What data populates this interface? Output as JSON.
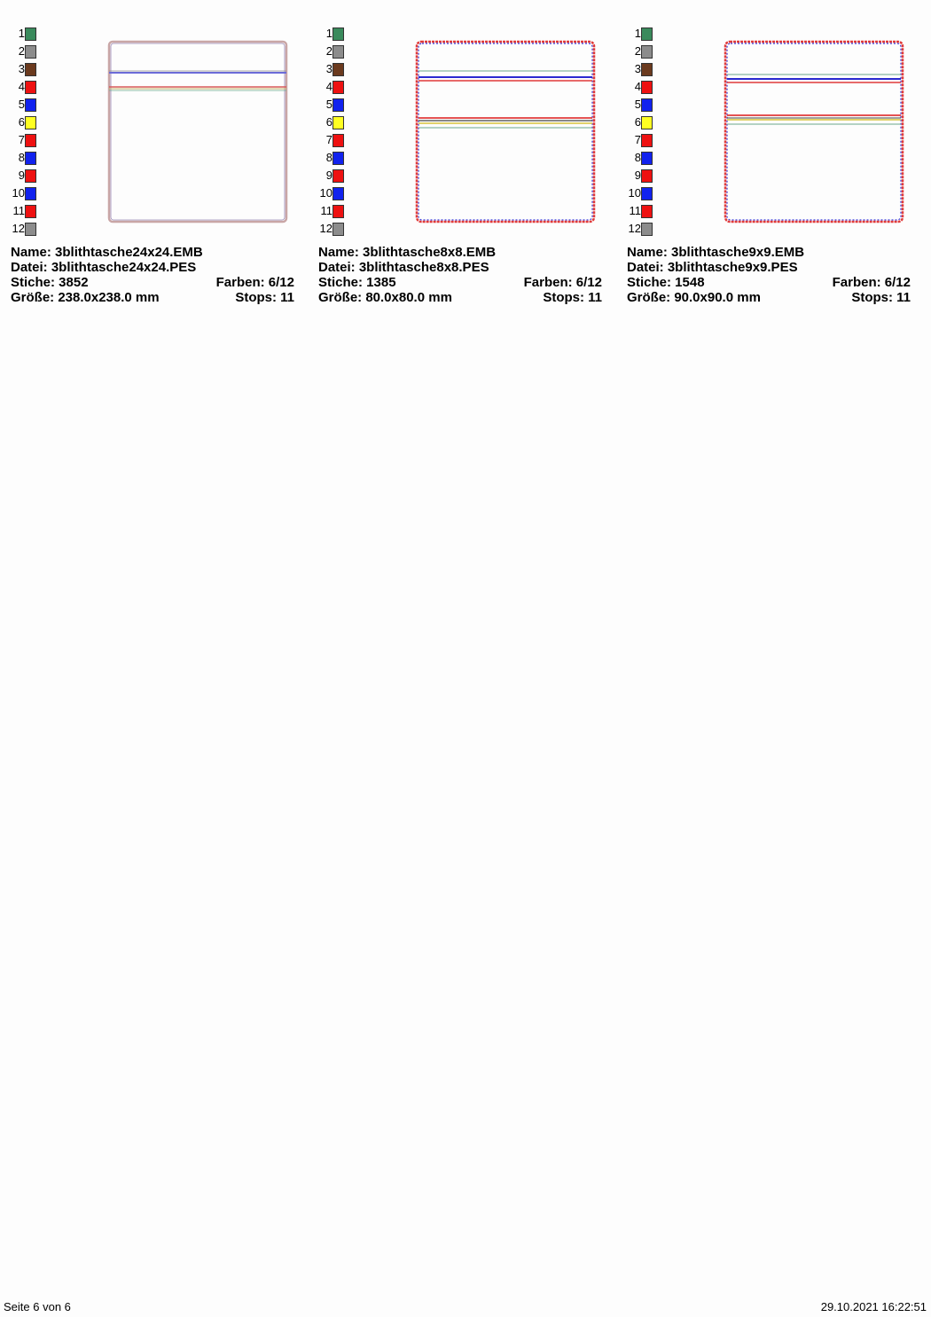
{
  "swatches": [
    {
      "num": "1",
      "color": "#3a8a5c"
    },
    {
      "num": "2",
      "color": "#8c8c8c"
    },
    {
      "num": "3",
      "color": "#6b3a1e"
    },
    {
      "num": "4",
      "color": "#ee1111"
    },
    {
      "num": "5",
      "color": "#1122ee"
    },
    {
      "num": "6",
      "color": "#ffff22"
    },
    {
      "num": "7",
      "color": "#ee1111"
    },
    {
      "num": "8",
      "color": "#1122ee"
    },
    {
      "num": "9",
      "color": "#ee1111"
    },
    {
      "num": "10",
      "color": "#1122ee"
    },
    {
      "num": "11",
      "color": "#ee1111"
    },
    {
      "num": "12",
      "color": "#8c8c8c"
    }
  ],
  "designs": [
    {
      "name": "Name: 3blithtasche24x24.EMB",
      "file": "Datei: 3blithtasche24x24.PES",
      "stitches": "Stiche: 3852",
      "colors": "Farben: 6/12",
      "size": "Größe: 238.0x238.0 mm",
      "stops": "Stops: 11"
    },
    {
      "name": "Name: 3blithtasche8x8.EMB",
      "file": "Datei: 3blithtasche8x8.PES",
      "stitches": "Stiche: 1385",
      "colors": "Farben: 6/12",
      "size": "Größe: 80.0x80.0 mm",
      "stops": "Stops: 11"
    },
    {
      "name": "Name: 3blithtasche9x9.EMB",
      "file": "Datei: 3blithtasche9x9.PES",
      "stitches": "Stiche: 1548",
      "colors": "Farben: 6/12",
      "size": "Größe: 90.0x90.0 mm",
      "stops": "Stops: 11"
    }
  ],
  "footer": {
    "page": "Seite 6 von 6",
    "timestamp": "29.10.2021 16:22:51"
  }
}
